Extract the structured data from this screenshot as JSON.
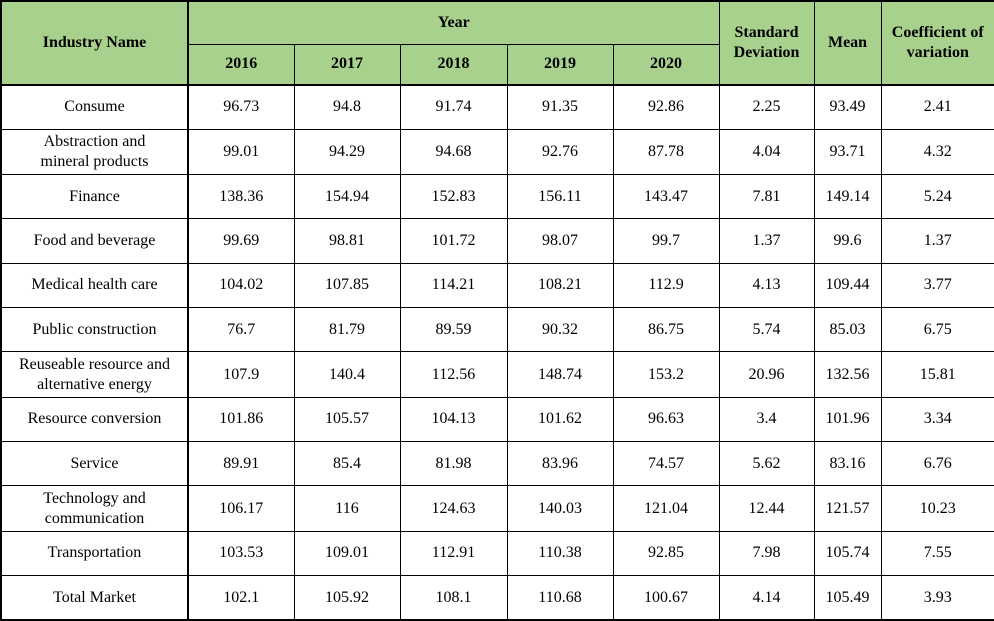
{
  "colors": {
    "header_bg": "#A9D18E",
    "border": "#000000",
    "body_bg": "#FFFFFF",
    "text": "#000000"
  },
  "table": {
    "header": {
      "industry_name": "Industry Name",
      "year_group": "Year",
      "years": [
        "2016",
        "2017",
        "2018",
        "2019",
        "2020"
      ],
      "standard_deviation": "Standard\nDeviation",
      "mean": "Mean",
      "coefficient_of_variation": "Coefficient of\nvariation"
    },
    "rows": [
      {
        "industry": "Consume",
        "values": [
          "96.73",
          "94.8",
          "91.74",
          "91.35",
          "92.86",
          "2.25",
          "93.49",
          "2.41"
        ]
      },
      {
        "industry": "Abstraction and\nmineral products",
        "values": [
          "99.01",
          "94.29",
          "94.68",
          "92.76",
          "87.78",
          "4.04",
          "93.71",
          "4.32"
        ]
      },
      {
        "industry": "Finance",
        "values": [
          "138.36",
          "154.94",
          "152.83",
          "156.11",
          "143.47",
          "7.81",
          "149.14",
          "5.24"
        ]
      },
      {
        "industry": "Food and beverage",
        "values": [
          "99.69",
          "98.81",
          "101.72",
          "98.07",
          "99.7",
          "1.37",
          "99.6",
          "1.37"
        ]
      },
      {
        "industry": "Medical health care",
        "values": [
          "104.02",
          "107.85",
          "114.21",
          "108.21",
          "112.9",
          "4.13",
          "109.44",
          "3.77"
        ]
      },
      {
        "industry": "Public construction",
        "values": [
          "76.7",
          "81.79",
          "89.59",
          "90.32",
          "86.75",
          "5.74",
          "85.03",
          "6.75"
        ]
      },
      {
        "industry": "Reuseable resource and\nalternative energy",
        "values": [
          "107.9",
          "140.4",
          "112.56",
          "148.74",
          "153.2",
          "20.96",
          "132.56",
          "15.81"
        ]
      },
      {
        "industry": "Resource conversion",
        "values": [
          "101.86",
          "105.57",
          "104.13",
          "101.62",
          "96.63",
          "3.4",
          "101.96",
          "3.34"
        ]
      },
      {
        "industry": "Service",
        "values": [
          "89.91",
          "85.4",
          "81.98",
          "83.96",
          "74.57",
          "5.62",
          "83.16",
          "6.76"
        ]
      },
      {
        "industry": "Technology and\ncommunication",
        "values": [
          "106.17",
          "116",
          "124.63",
          "140.03",
          "121.04",
          "12.44",
          "121.57",
          "10.23"
        ]
      },
      {
        "industry": "Transportation",
        "values": [
          "103.53",
          "109.01",
          "112.91",
          "110.38",
          "92.85",
          "7.98",
          "105.74",
          "7.55"
        ]
      },
      {
        "industry": "Total Market",
        "values": [
          "102.1",
          "105.92",
          "108.1",
          "110.68",
          "100.67",
          "4.14",
          "105.49",
          "3.93"
        ]
      }
    ]
  }
}
